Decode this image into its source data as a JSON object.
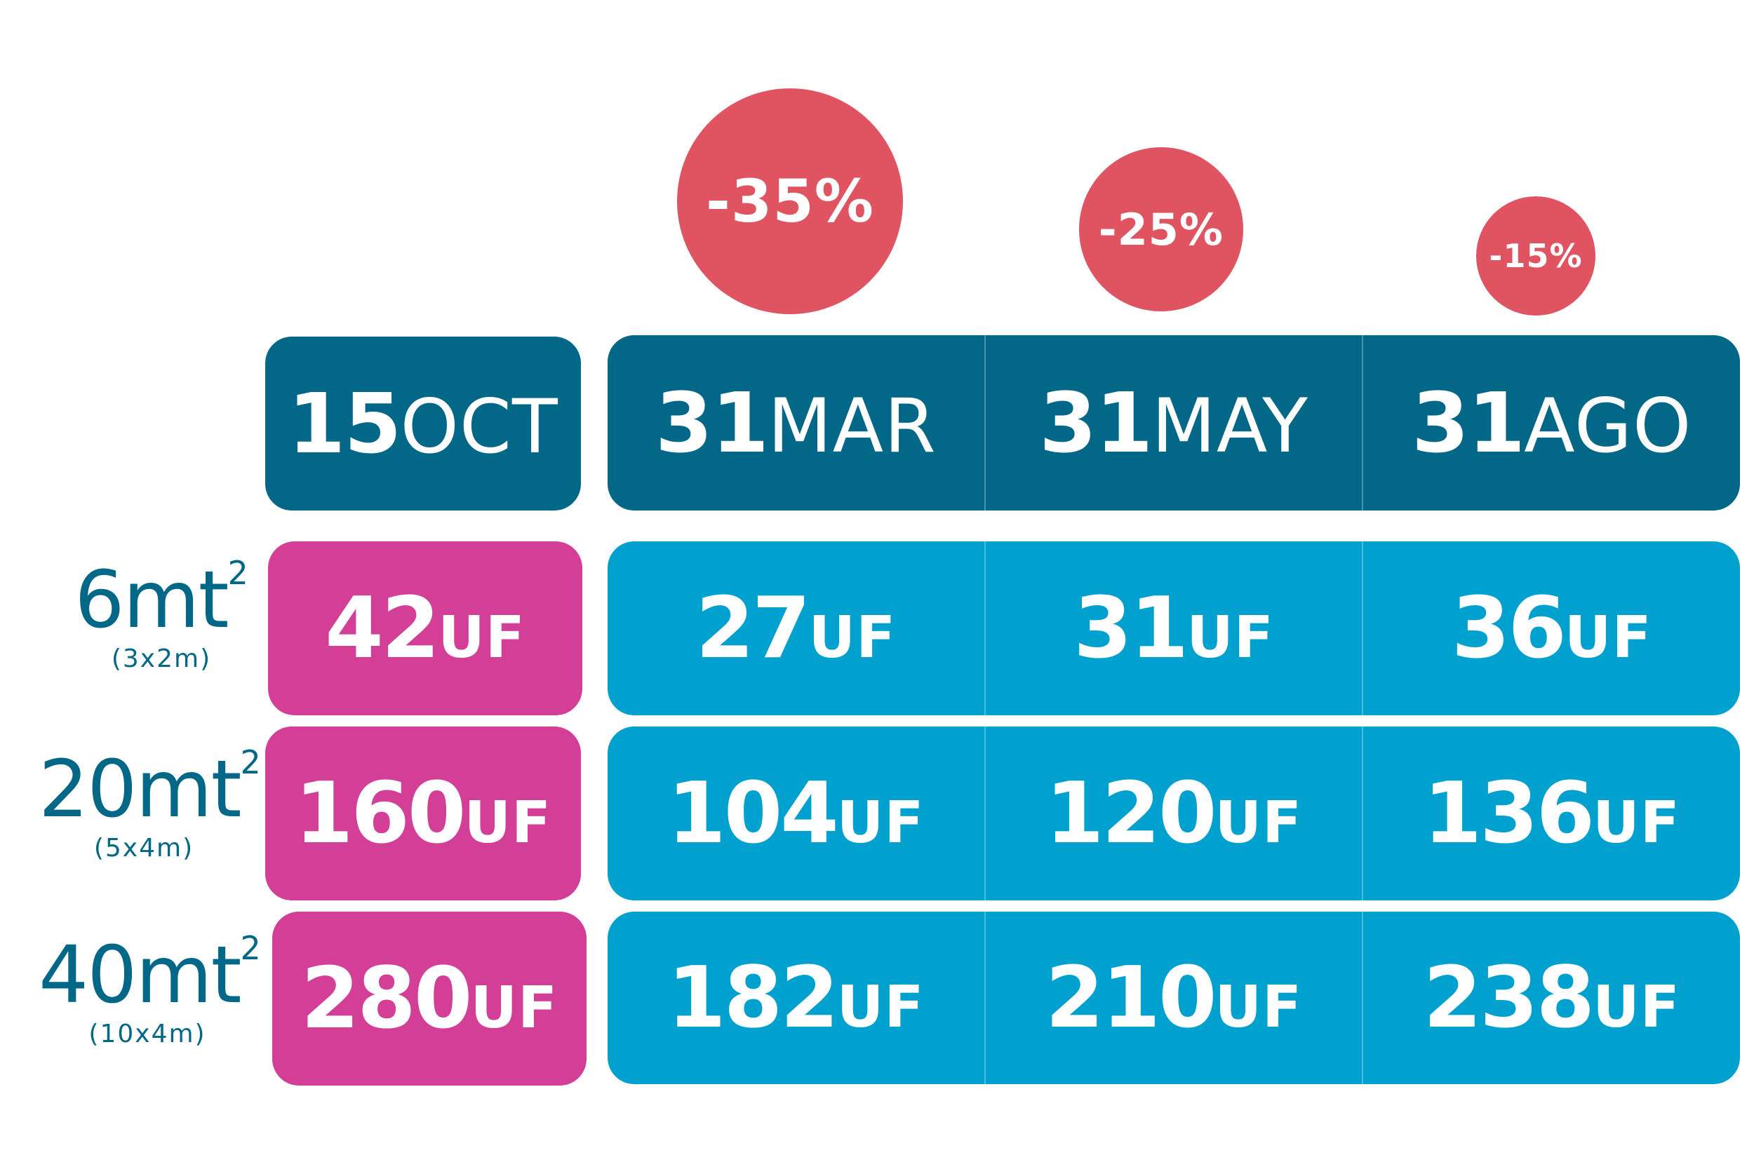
{
  "colors": {
    "header": "#036787",
    "early_bird": "#d33f97",
    "discount_rows": "#00a1cf",
    "badge": "#e05462",
    "label_text": "#036787"
  },
  "discounts": [
    {
      "label": "-35%"
    },
    {
      "label": "-25%"
    },
    {
      "label": "-15%"
    }
  ],
  "columns": [
    {
      "day": "15",
      "month": "OCT"
    },
    {
      "day": "31",
      "month": "MAR"
    },
    {
      "day": "31",
      "month": "MAY"
    },
    {
      "day": "31",
      "month": "AGO"
    }
  ],
  "currency": "UF",
  "rows": [
    {
      "size": "6mt",
      "exp": "2",
      "dims": "(3x2m)",
      "prices": [
        "42",
        "27",
        "31",
        "36"
      ]
    },
    {
      "size": "20mt",
      "exp": "2",
      "dims": "(5x4m)",
      "prices": [
        "160",
        "104",
        "120",
        "136"
      ]
    },
    {
      "size": "40mt",
      "exp": "2",
      "dims": "(10x4m)",
      "prices": [
        "280",
        "182",
        "210",
        "238"
      ]
    }
  ]
}
